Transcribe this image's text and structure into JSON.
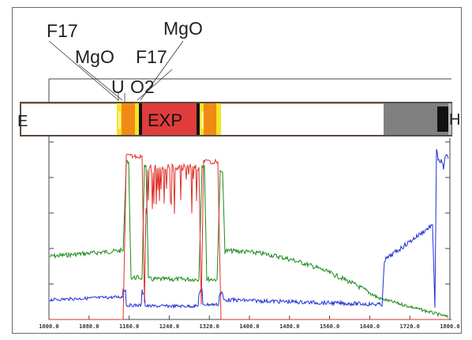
{
  "labels": {
    "f17_left": "F17",
    "mgo_left": "MgO",
    "mgo_right": "MgO",
    "f17_right": "F17",
    "u_marker": "U",
    "o2_marker": "O2",
    "exp": "EXP",
    "left_edge": "E",
    "right_edge": "H"
  },
  "x_ticks": [
    "1000.0",
    "1080.0",
    "1160.0",
    "1240.0",
    "1320.0",
    "1400.0",
    "1480.0",
    "1560.0",
    "1640.0",
    "1720.0",
    "1800.0"
  ],
  "colors": {
    "green": "#1a8a1a",
    "blue": "#1e2fd4",
    "red": "#e0302a",
    "orange": "#f08a14",
    "yellow": "#f2e424",
    "exp_fill": "#e03c3c",
    "grey_block": "#808080"
  }
}
